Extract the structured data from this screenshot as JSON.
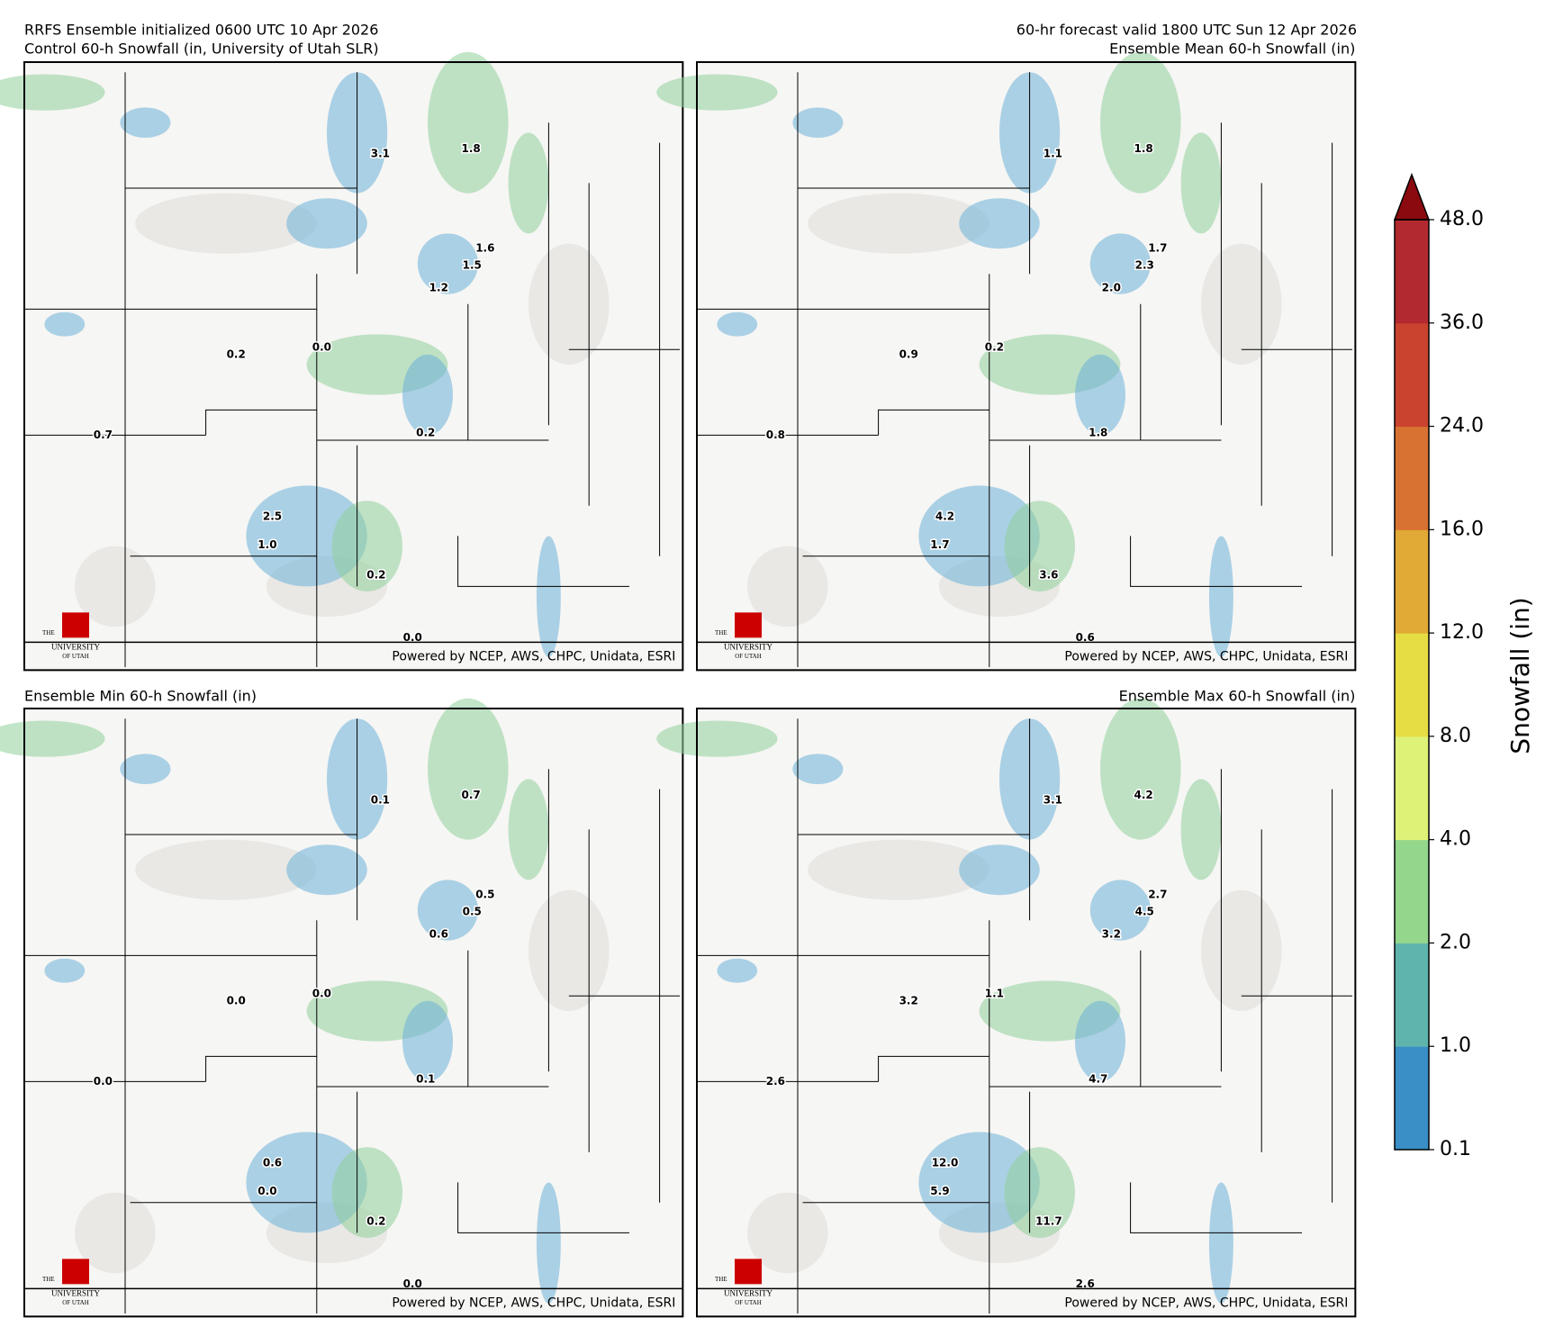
{
  "header": {
    "left_line1": "RRFS Ensemble initialized 0600 UTC 10 Apr 2026",
    "left_line2": "Control 60-h Snowfall (in, University of Utah SLR)",
    "right_line1": "60-hr forecast valid 1800 UTC Sun 12 Apr 2026",
    "right_line2": "Ensemble Mean 60-h Snowfall (in)"
  },
  "panels": [
    {
      "title": "Control 60-h Snowfall (in, University of Utah SLR)",
      "points": [
        "3.1",
        "1.8",
        "1.6",
        "1.5",
        "1.2",
        "0.2",
        "0.0",
        "0.7",
        "0.2",
        "2.5",
        "1.0",
        "0.2",
        "0.0"
      ]
    },
    {
      "title": "Ensemble Mean 60-h Snowfall (in)",
      "points": [
        "1.1",
        "1.8",
        "1.7",
        "2.3",
        "2.0",
        "0.9",
        "0.2",
        "0.8",
        "1.8",
        "4.2",
        "1.7",
        "3.6",
        "0.6"
      ]
    },
    {
      "title": "Ensemble Min 60-h Snowfall (in)",
      "points": [
        "0.1",
        "0.7",
        "0.5",
        "0.5",
        "0.6",
        "0.0",
        "0.0",
        "0.0",
        "0.1",
        "0.6",
        "0.0",
        "0.2",
        "0.0"
      ]
    },
    {
      "title": "Ensemble Max 60-h Snowfall (in)",
      "points": [
        "3.1",
        "4.2",
        "2.7",
        "4.5",
        "3.2",
        "3.2",
        "1.1",
        "2.6",
        "4.7",
        "12.0",
        "5.9",
        "11.7",
        "2.6"
      ]
    }
  ],
  "footer": "Powered by NCEP, AWS, CHPC, Unidata, ESRI",
  "logo": {
    "the": "THE",
    "name": "UNIVERSITY",
    "of": "OF UTAH"
  },
  "colorbar": {
    "label": "Snowfall (in)",
    "ticks": [
      {
        "value": 0.1,
        "label": "0.1"
      },
      {
        "value": 1,
        "label": "1.0"
      },
      {
        "value": 2,
        "label": "2.0"
      },
      {
        "value": 4,
        "label": "4.0"
      },
      {
        "value": 8,
        "label": "8.0"
      },
      {
        "value": 12,
        "label": "12.0"
      },
      {
        "value": 16,
        "label": "16.0"
      },
      {
        "value": 24,
        "label": "24.0"
      },
      {
        "value": 36,
        "label": "36.0"
      },
      {
        "value": 48,
        "label": "48.0"
      }
    ],
    "colors": [
      "#3a8fc7",
      "#5fb5ae",
      "#93d68c",
      "#def277",
      "#e6dd44",
      "#e1a935",
      "#d87233",
      "#c9432e",
      "#b22a2f"
    ],
    "extend_color": "#8b0a0f"
  }
}
